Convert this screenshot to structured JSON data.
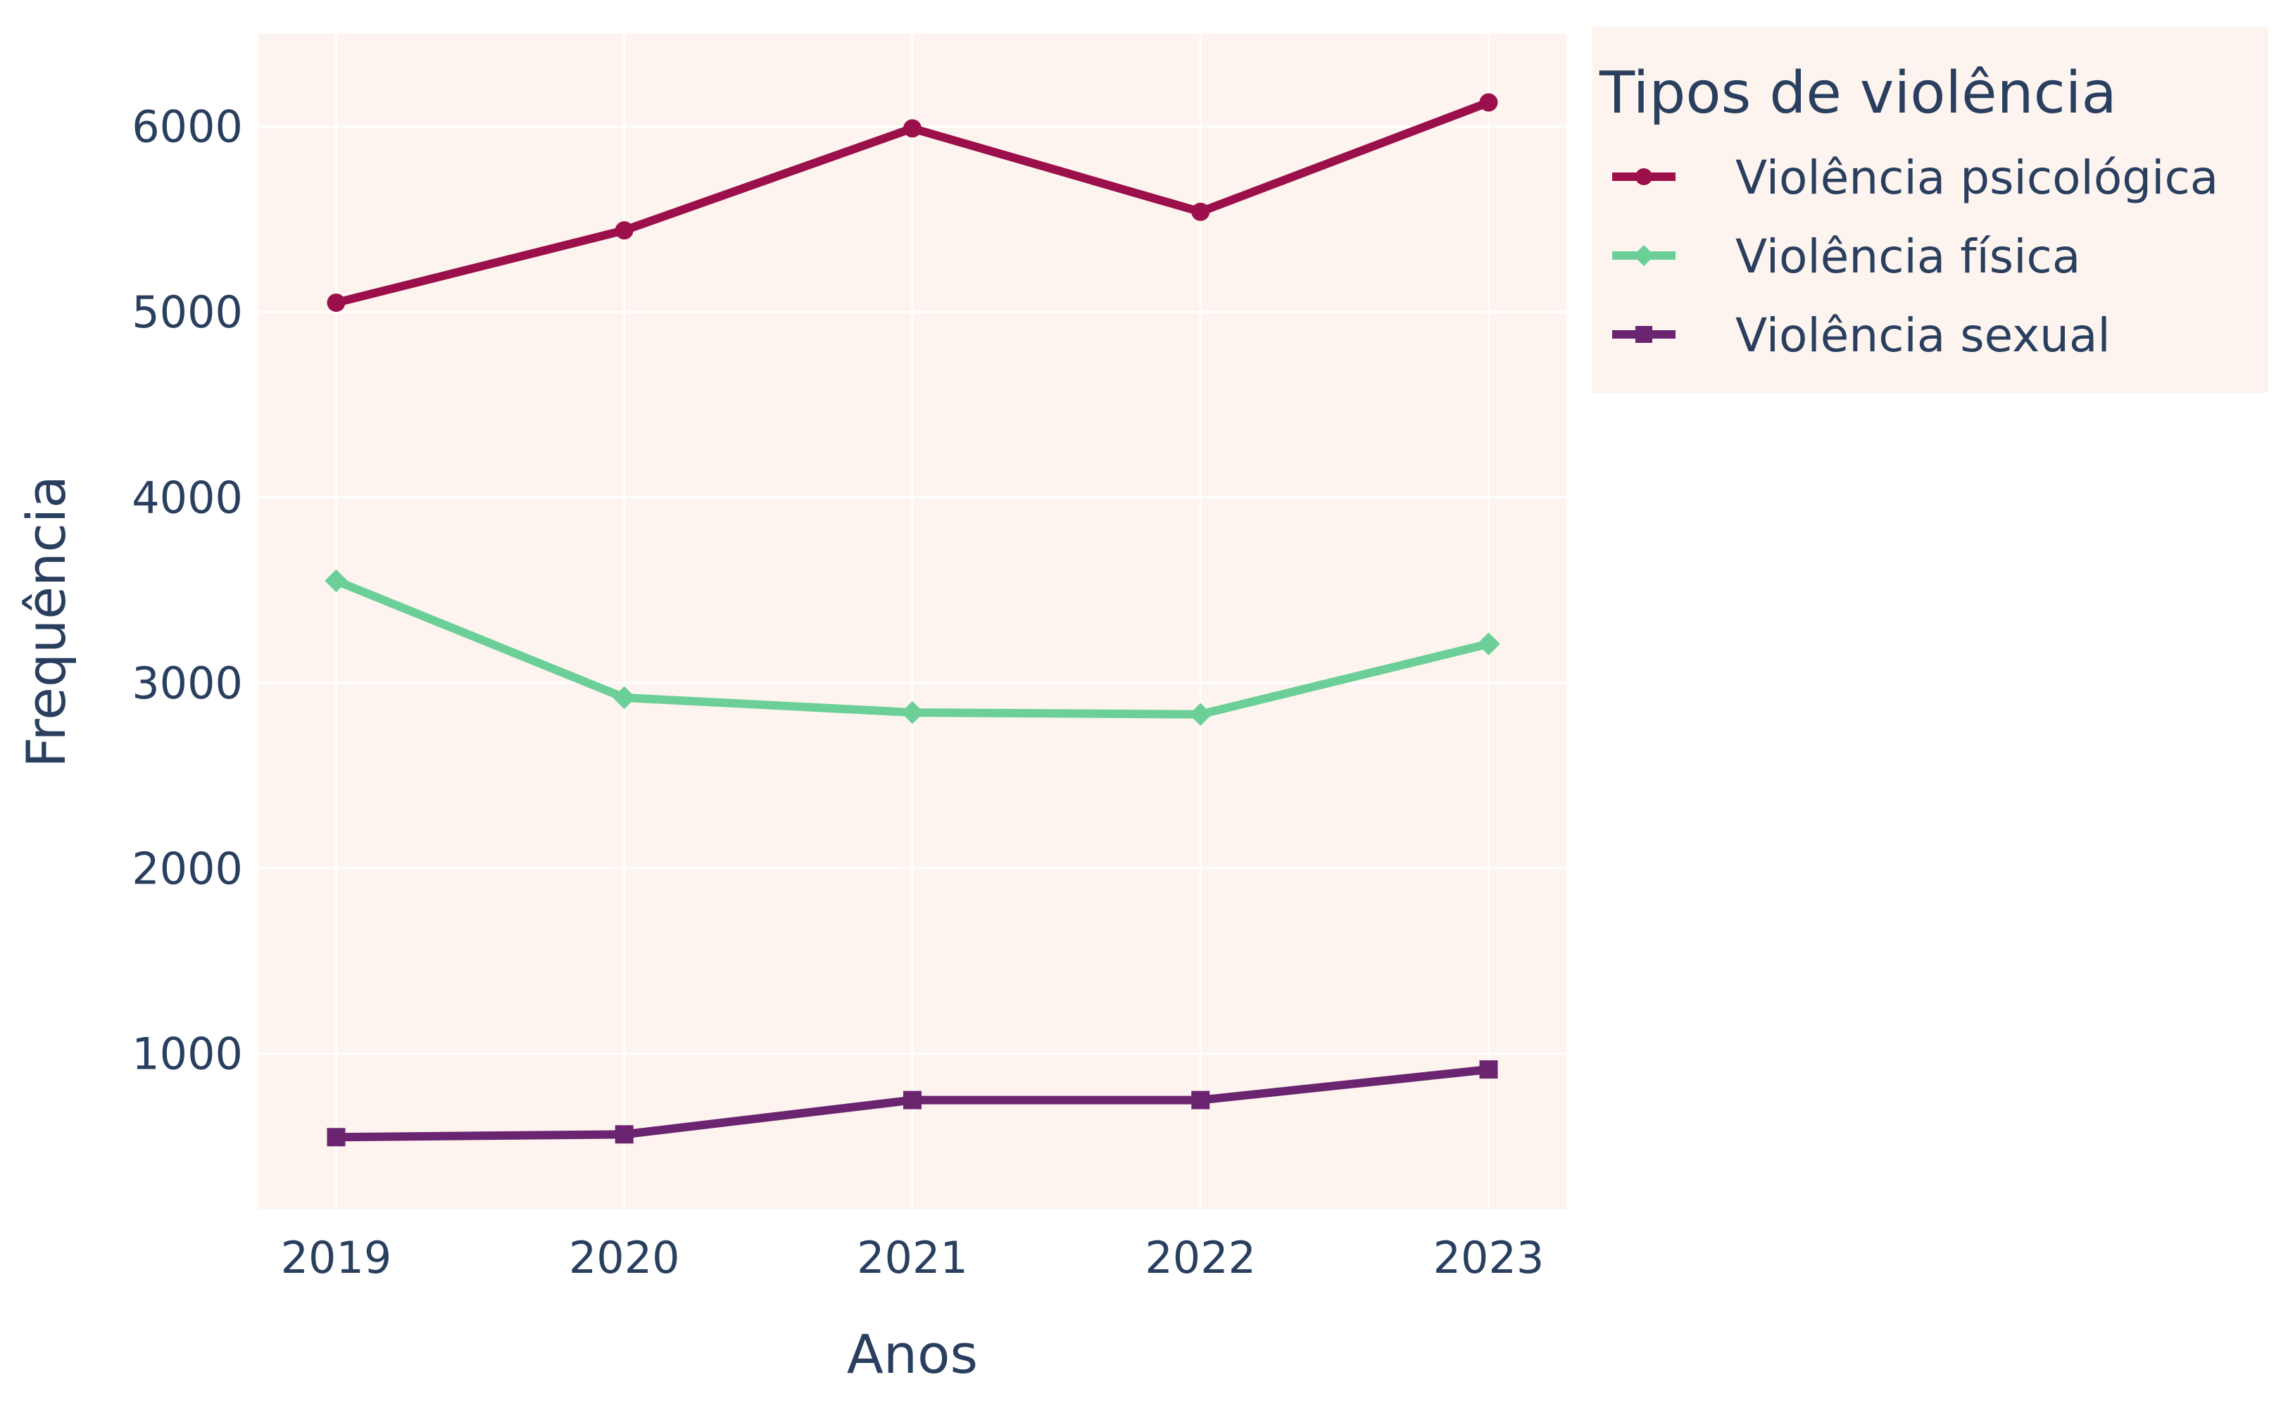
{
  "chart_data": {
    "type": "line",
    "xlabel": "Anos",
    "ylabel": "Frequência",
    "x": [
      2019,
      2020,
      2021,
      2022,
      2023
    ],
    "xlim": [
      2018.73,
      2023.27
    ],
    "ylim": [
      160,
      6500
    ],
    "yticks": [
      1000,
      2000,
      3000,
      4000,
      5000,
      6000
    ],
    "grid": true,
    "plot_background": "#fdf4ef",
    "legend": {
      "title": "Tipos de violência",
      "placement": "top-right, outside plot"
    },
    "series": [
      {
        "name": "Violência psicológica",
        "color": "#9b0f4a",
        "marker": "circle",
        "values": [
          5050,
          5440,
          5990,
          5540,
          6130
        ]
      },
      {
        "name": "Violência física",
        "color": "#6ccf97",
        "marker": "diamond",
        "values": [
          3550,
          2920,
          2840,
          2830,
          3210
        ]
      },
      {
        "name": "Violência sexual",
        "color": "#6b2470",
        "marker": "square",
        "values": [
          550,
          565,
          750,
          750,
          915
        ]
      }
    ]
  }
}
